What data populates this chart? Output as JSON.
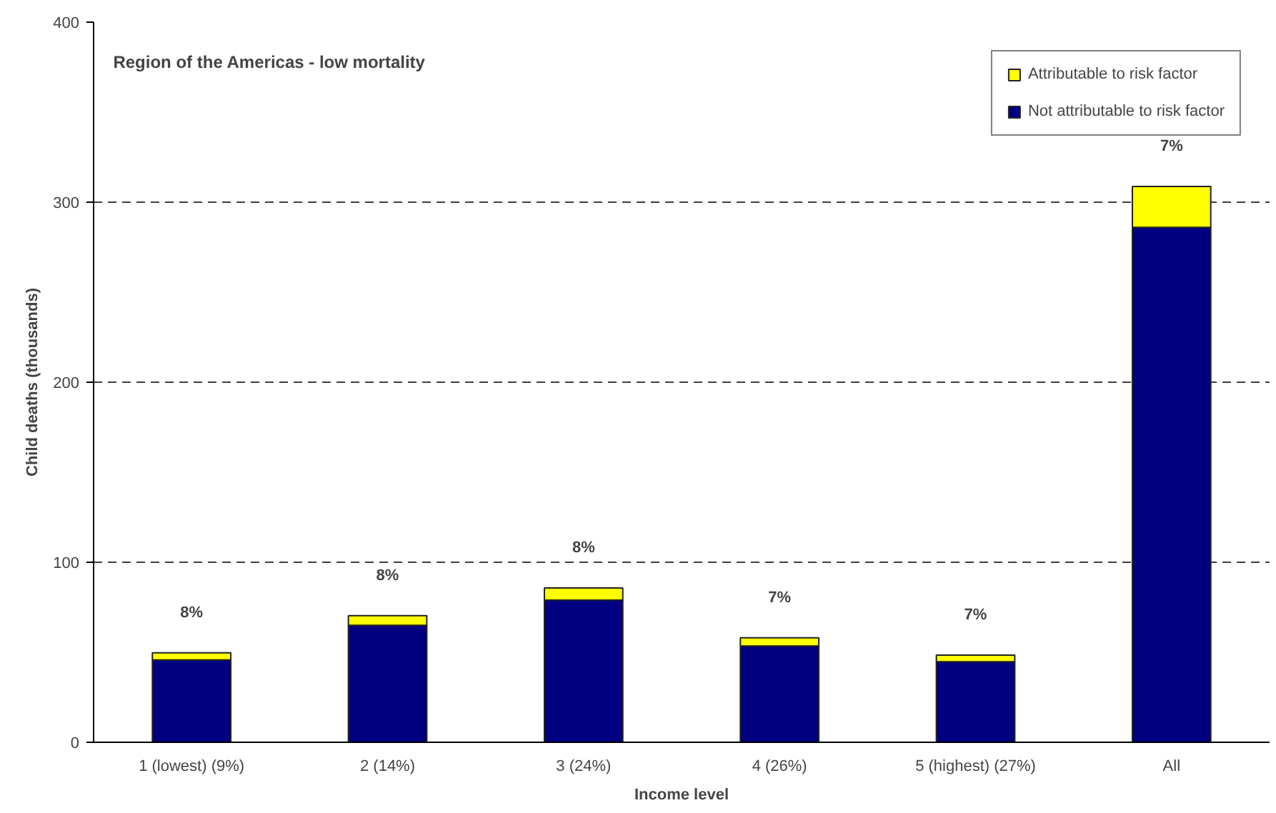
{
  "chart_data": {
    "type": "bar",
    "stacked": true,
    "title": "Region of the Americas - low mortality",
    "xlabel": "Income level",
    "ylabel": "Child deaths (thousands)",
    "categories": [
      "1 (lowest) (9%)",
      "2 (14%)",
      "3 (24%)",
      "4 (26%)",
      "5 (highest) (27%)",
      "All"
    ],
    "series": [
      {
        "name": "Not attributable to risk factor",
        "color": "#000080",
        "values": [
          45.7,
          65,
          79,
          53.5,
          44.7,
          286
        ]
      },
      {
        "name": "Attributable to risk factor",
        "color": "#ffff00",
        "values": [
          4,
          5.3,
          6.7,
          4.5,
          3.7,
          22.7
        ]
      }
    ],
    "annotations": [
      {
        "text": "8%",
        "x": "1 (lowest) (9%)",
        "y": 49.7
      },
      {
        "text": "8%",
        "x": "2 (14%)",
        "y": 70.3
      },
      {
        "text": "8%",
        "x": "3 (24%)",
        "y": 85.7
      },
      {
        "text": "7%",
        "x": "4 (26%)",
        "y": 58
      },
      {
        "text": "7%",
        "x": "5 (highest) (27%)",
        "y": 48.4
      },
      {
        "text": "7%",
        "x": "All",
        "y": 308.7
      }
    ],
    "ylim": [
      0,
      400
    ],
    "yticks": [
      0,
      100,
      200,
      300,
      400
    ],
    "grid": "y",
    "legend": "top right"
  }
}
